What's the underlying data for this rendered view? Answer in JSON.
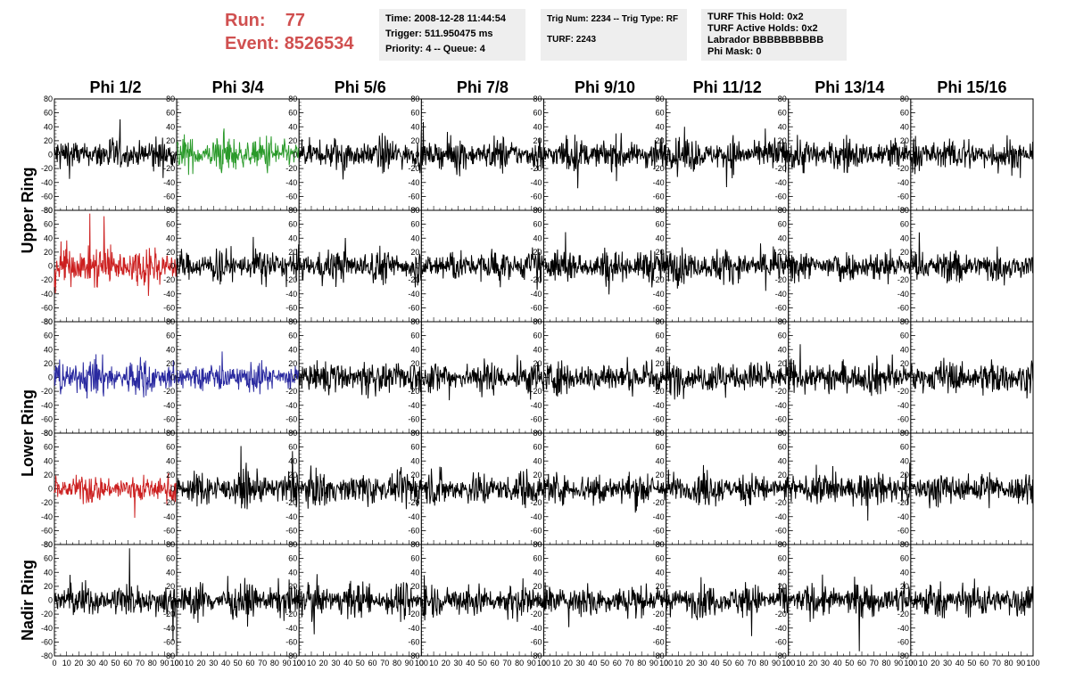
{
  "header": {
    "run_label": "Run:",
    "run_value": "77",
    "event_label": "Event:",
    "event_value": "8526534",
    "time": "Time: 2008-12-28 11:44:54",
    "trigger": "Trigger: 511.950475 ms",
    "priority": "Priority: 4 -- Queue: 4",
    "trig_num": "Trig Num: 2234 -- Trig Type: RF",
    "turf": "TURF: 2243",
    "turf_hold": "TURF This Hold: 0x2",
    "turf_active": "TURF Active Holds: 0x2",
    "labrador": "Labrador BBBBBBBBBB",
    "phi_mask": "Phi Mask: 0"
  },
  "chart_data": {
    "type": "line",
    "columns": [
      "Phi 1/2",
      "Phi 3/4",
      "Phi 5/6",
      "Phi 7/8",
      "Phi 9/10",
      "Phi 11/12",
      "Phi 13/14",
      "Phi 15/16"
    ],
    "rows": [
      "Upper Ring",
      "Upper Ring",
      "Lower Ring",
      "Lower Ring",
      "Nadir Ring"
    ],
    "row_titles": [
      "Upper Ring",
      "Lower Ring",
      "Nadir Ring"
    ],
    "xlim": [
      0,
      100
    ],
    "ylim": [
      -80,
      80
    ],
    "x_ticks": [
      "0",
      "10",
      "20",
      "30",
      "40",
      "50",
      "60",
      "70",
      "80",
      "90",
      "100"
    ],
    "y_ticks": [
      "80",
      "60",
      "40",
      "20",
      "0",
      "-20",
      "-40",
      "-60",
      "-80"
    ],
    "colors": {
      "default": "#000000",
      "green": "#2a9a2a",
      "red": "#cc2020",
      "blue": "#2a2aa0",
      "run_text": "#d05050"
    },
    "highlighted_panels": [
      {
        "row": 0,
        "col": 1,
        "color": "green",
        "amplitude": 15
      },
      {
        "row": 1,
        "col": 0,
        "color": "red",
        "amplitude": 18
      },
      {
        "row": 2,
        "col": 0,
        "color": "blue",
        "amplitude": 16
      },
      {
        "row": 2,
        "col": 1,
        "color": "blue",
        "amplitude": 12
      },
      {
        "row": 3,
        "col": 0,
        "color": "red",
        "amplitude": 12
      }
    ],
    "default_amplitude": 14,
    "samples_per_trace": 260
  }
}
